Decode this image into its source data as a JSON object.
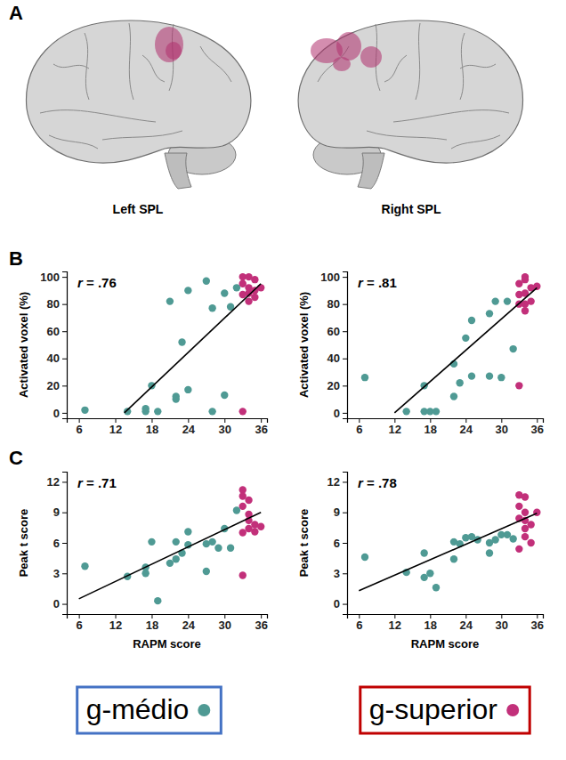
{
  "panel_labels": [
    "A",
    "B",
    "C"
  ],
  "brain_labels": [
    "Left SPL",
    "Right SPL"
  ],
  "chart_data": [
    {
      "type": "scatter",
      "ylabel": "Activated voxel (%)",
      "annotation": "r = .76",
      "xlim": [
        4,
        37
      ],
      "xticks": [
        6,
        12,
        18,
        24,
        30,
        36
      ],
      "ylim": [
        -4,
        104
      ],
      "yticks": [
        0,
        20,
        40,
        60,
        80,
        100
      ],
      "grid": false,
      "legend": "bottom",
      "series": [
        {
          "name": "g-médio",
          "color": "#4f9a94",
          "marker": "circle",
          "x": [
            7,
            14,
            17,
            17,
            18,
            19,
            21,
            22,
            22,
            23,
            24,
            24,
            27,
            28,
            28,
            30,
            30,
            31,
            32
          ],
          "values": [
            2,
            1,
            3,
            1,
            20,
            1,
            82,
            10,
            12,
            52,
            90,
            17,
            97,
            1,
            77,
            13,
            88,
            78,
            92
          ]
        },
        {
          "name": "g-superior",
          "color": "#c2307a",
          "marker": "circle",
          "x": [
            33,
            33,
            33,
            33,
            34,
            34,
            34,
            34,
            35,
            35,
            35,
            36
          ],
          "values": [
            1,
            100,
            95,
            87,
            100,
            92,
            88,
            82,
            98,
            85,
            90,
            92
          ]
        },
        {
          "type": "line",
          "color": "#000000",
          "x": [
            13.5,
            36
          ],
          "values": [
            0,
            95
          ]
        }
      ]
    },
    {
      "type": "scatter",
      "ylabel": "Activated voxel (%)",
      "annotation": "r = .81",
      "xlim": [
        4,
        37
      ],
      "xticks": [
        6,
        12,
        18,
        24,
        30,
        36
      ],
      "ylim": [
        -4,
        104
      ],
      "yticks": [
        0,
        20,
        40,
        60,
        80,
        100
      ],
      "grid": false,
      "series": [
        {
          "name": "g-médio",
          "color": "#4f9a94",
          "marker": "circle",
          "x": [
            7,
            14,
            17,
            17,
            18,
            19,
            22,
            22,
            23,
            24,
            25,
            25,
            28,
            28,
            29,
            30,
            31,
            32
          ],
          "values": [
            26,
            1,
            1,
            20,
            1,
            1,
            12,
            36,
            22,
            55,
            68,
            27,
            27,
            73,
            82,
            26,
            82,
            47
          ]
        },
        {
          "name": "g-superior",
          "color": "#c2307a",
          "marker": "circle",
          "x": [
            33,
            33,
            33,
            33,
            34,
            34,
            34,
            34,
            34,
            35,
            35,
            36
          ],
          "values": [
            20,
            87,
            95,
            80,
            100,
            98,
            80,
            88,
            75,
            82,
            92,
            93
          ]
        },
        {
          "type": "line",
          "color": "#000000",
          "x": [
            12,
            36
          ],
          "values": [
            0,
            92
          ]
        }
      ]
    },
    {
      "type": "scatter",
      "xlabel": "RAPM score",
      "ylabel": "Peak t score",
      "annotation": "r = .71",
      "xlim": [
        4,
        37
      ],
      "xticks": [
        6,
        12,
        18,
        24,
        30,
        36
      ],
      "ylim": [
        -1,
        13
      ],
      "yticks": [
        0,
        3,
        6,
        9,
        12
      ],
      "grid": false,
      "series": [
        {
          "name": "g-médio",
          "color": "#4f9a94",
          "marker": "circle",
          "x": [
            7,
            14,
            17,
            17,
            18,
            19,
            21,
            22,
            22,
            23,
            24,
            24,
            27,
            27,
            28,
            29,
            30,
            31,
            32
          ],
          "values": [
            3.7,
            2.7,
            3.6,
            3.0,
            6.1,
            0.3,
            4.0,
            4.4,
            6.1,
            5.0,
            5.8,
            7.1,
            3.2,
            5.9,
            6.1,
            5.5,
            7.4,
            5.5,
            9.2
          ]
        },
        {
          "name": "g-superior",
          "color": "#c2307a",
          "marker": "circle",
          "x": [
            33,
            33,
            33,
            33,
            33,
            34,
            34,
            34,
            34,
            35,
            35,
            36
          ],
          "values": [
            2.8,
            11.2,
            10.6,
            9.6,
            7.0,
            10.2,
            8.2,
            7.4,
            8.8,
            7.8,
            7.1,
            7.6
          ]
        },
        {
          "type": "line",
          "color": "#000000",
          "x": [
            6,
            36
          ],
          "values": [
            0.5,
            9
          ]
        }
      ]
    },
    {
      "type": "scatter",
      "xlabel": "RAPM score",
      "ylabel": "Peak t score",
      "annotation": "r = .78",
      "xlim": [
        4,
        37
      ],
      "xticks": [
        6,
        12,
        18,
        24,
        30,
        36
      ],
      "ylim": [
        -1,
        13
      ],
      "yticks": [
        0,
        3,
        6,
        9,
        12
      ],
      "grid": false,
      "series": [
        {
          "name": "g-médio",
          "color": "#4f9a94",
          "marker": "circle",
          "x": [
            7,
            14,
            17,
            17,
            18,
            19,
            22,
            22,
            23,
            24,
            25,
            26,
            28,
            28,
            29,
            30,
            31,
            32
          ],
          "values": [
            4.6,
            3.1,
            2.6,
            5.0,
            3.0,
            1.6,
            4.4,
            6.1,
            5.9,
            6.5,
            6.6,
            6.3,
            5.0,
            6.0,
            6.3,
            6.8,
            6.8,
            6.4
          ]
        },
        {
          "name": "g-superior",
          "color": "#c2307a",
          "marker": "circle",
          "x": [
            33,
            33,
            33,
            33,
            34,
            34,
            34,
            34,
            34,
            35,
            35,
            36
          ],
          "values": [
            10.7,
            9.6,
            8.4,
            5.4,
            10.5,
            9.0,
            8.2,
            7.4,
            6.6,
            7.8,
            6.0,
            9.0
          ]
        },
        {
          "type": "line",
          "color": "#000000",
          "x": [
            6,
            36
          ],
          "values": [
            1.3,
            8.9
          ]
        }
      ]
    }
  ]
}
